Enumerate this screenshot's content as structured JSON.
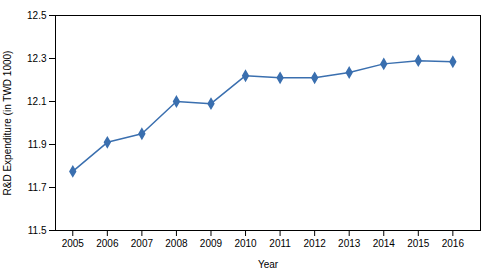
{
  "chart_data": {
    "type": "line",
    "x": [
      2005,
      2006,
      2007,
      2008,
      2009,
      2010,
      2011,
      2012,
      2013,
      2014,
      2015,
      2016
    ],
    "values": [
      11.775,
      11.91,
      11.95,
      12.1,
      12.09,
      12.22,
      12.21,
      12.21,
      12.235,
      12.275,
      12.29,
      12.285
    ],
    "color": "#3a6faf",
    "marker": "diamond",
    "xlabel": "Year",
    "ylabel": "R&D Expenditure (in TWD 1000)",
    "xlim": [
      2004.5,
      2016.8
    ],
    "ylim": [
      11.5,
      12.5
    ],
    "xticks": [
      2005,
      2006,
      2007,
      2008,
      2009,
      2010,
      2011,
      2012,
      2013,
      2014,
      2015,
      2016
    ],
    "yticks": [
      11.5,
      11.7,
      11.9,
      12.1,
      12.3,
      12.5
    ],
    "grid": false
  }
}
